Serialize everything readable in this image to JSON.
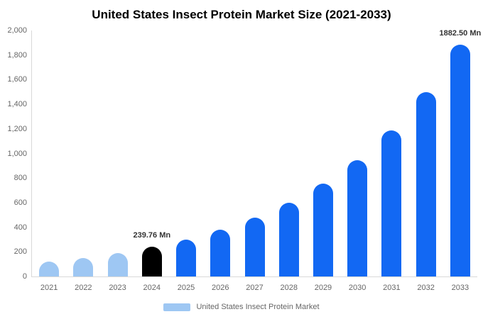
{
  "title": "United States Insect Protein Market Size (2021-2033)",
  "legend": {
    "label": "United States Insect Protein Market",
    "swatch_color": "#9ec7f3"
  },
  "colors": {
    "light_blue": "#9ec7f3",
    "highlight_black": "#000000",
    "primary_blue": "#1268f3",
    "axis_line": "#d9d9d9",
    "tick_text": "#666666",
    "annotation_text": "#333333",
    "background": "#ffffff"
  },
  "chart_data": {
    "type": "bar",
    "title": "United States Insect Protein Market Size (2021-2033)",
    "categories": [
      "2021",
      "2022",
      "2023",
      "2024",
      "2025",
      "2026",
      "2027",
      "2028",
      "2029",
      "2030",
      "2031",
      "2032",
      "2033"
    ],
    "values": [
      121,
      152,
      191,
      239.76,
      301,
      379,
      476,
      599,
      753,
      947,
      1190,
      1496,
      1882.5
    ],
    "unit": "Mn",
    "xlabel": "",
    "ylabel": "",
    "ylim": [
      0,
      2000
    ],
    "ytick_step": 200,
    "grid": false,
    "legend_position": "bottom",
    "bar_colors": [
      "#9ec7f3",
      "#9ec7f3",
      "#9ec7f3",
      "#000000",
      "#1268f3",
      "#1268f3",
      "#1268f3",
      "#1268f3",
      "#1268f3",
      "#1268f3",
      "#1268f3",
      "#1268f3",
      "#1268f3"
    ],
    "annotations": [
      {
        "category": "2024",
        "text": "239.76 Mn"
      },
      {
        "category": "2033",
        "text": "1882.50 Mn"
      }
    ]
  }
}
